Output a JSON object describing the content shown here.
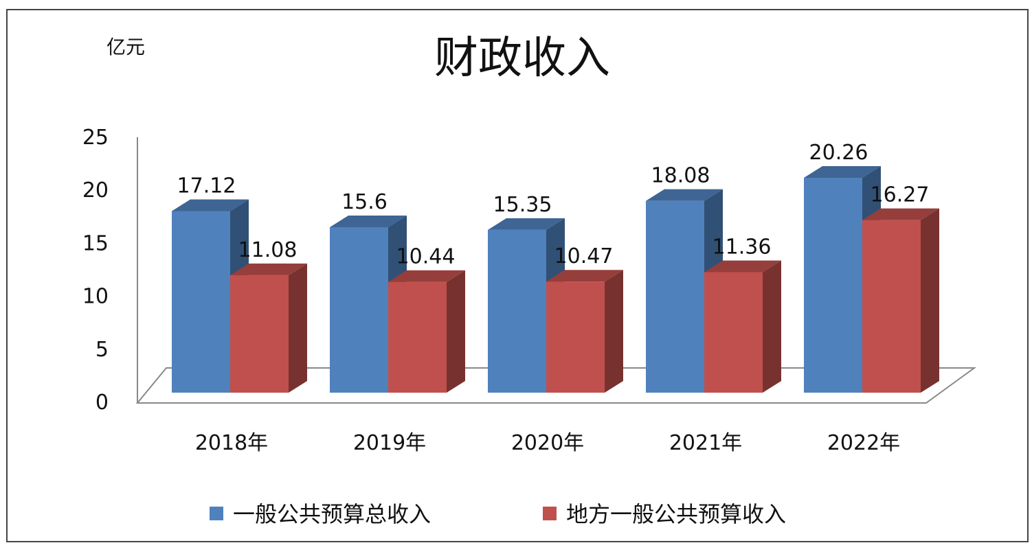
{
  "chart_data": {
    "type": "bar",
    "title": "财政收入",
    "ylabel": "亿元",
    "ylim": [
      0,
      25
    ],
    "yticks": [
      0,
      5,
      10,
      15,
      20,
      25
    ],
    "categories": [
      "2018年",
      "2019年",
      "2020年",
      "2021年",
      "2022年"
    ],
    "series": [
      {
        "name": "一般公共预算总收入",
        "values": [
          17.12,
          15.6,
          15.35,
          18.08,
          20.26
        ],
        "value_labels": [
          "17.12",
          "15.6",
          "15.35",
          "18.08",
          "20.26"
        ],
        "color": "#4F81BD"
      },
      {
        "name": "地方一般公共预算收入",
        "values": [
          11.08,
          10.44,
          10.47,
          11.36,
          16.27
        ],
        "value_labels": [
          "11.08",
          "10.44",
          "10.47",
          "11.36",
          "16.27"
        ],
        "color": "#C0504D"
      }
    ],
    "legend_position": "bottom",
    "grid": false
  }
}
